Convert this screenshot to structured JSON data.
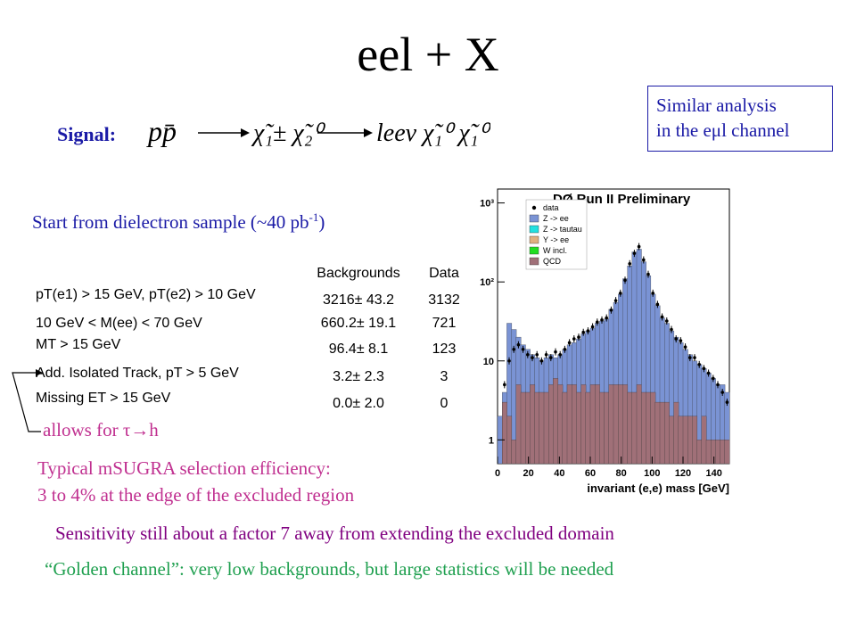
{
  "slide": {
    "title": "eel + X",
    "callout": {
      "line1": "Similar analysis",
      "line2": "in the eμl channel"
    },
    "signal_label": "Signal:",
    "formula": {
      "lhs": "pp̄",
      "mid": "χ̃₁± χ̃₂⁰",
      "rhs": "leeν χ̃₁⁰ χ̃₁⁰"
    },
    "start_text": "Start from dielectron sample (~40 pb",
    "start_sup": "-1",
    "start_close": ")",
    "table": {
      "headers": {
        "backgrounds": "Backgrounds",
        "data": "Data"
      },
      "rows": [
        {
          "cut": "pT(e1) > 15 GeV, pT(e2) > 10 GeV",
          "bkg": "3216± 43.2",
          "data": "3132"
        },
        {
          "cut": "10 GeV < M(ee) < 70 GeV",
          "bkg": "660.2± 19.1",
          "data": "721"
        },
        {
          "cut": "MT > 15 GeV",
          "bkg": "96.4± 8.1",
          "data": "123"
        },
        {
          "cut": "Add. Isolated Track, pT > 5 GeV",
          "bkg": "3.2± 2.3",
          "data": "3"
        },
        {
          "cut": "Missing ET > 15 GeV",
          "bkg": "0.0± 2.0",
          "data": "0"
        }
      ]
    },
    "allows": "allows for τ→h",
    "efficiency_line1": "Typical mSUGRA selection efficiency:",
    "efficiency_line2": "3 to 4% at the edge of the excluded region",
    "sensitivity": "Sensitivity still about a factor 7 away from extending the excluded domain",
    "golden": "“Golden channel”: very low backgrounds, but large statistics will be needed"
  },
  "colors": {
    "blue": "#1a1aa6",
    "magenta": "#c03090",
    "purple": "#800080",
    "green": "#20a050"
  },
  "chart_data": {
    "type": "bar",
    "title": "DØ Run II Preliminary",
    "xlabel": "invariant (e,e) mass [GeV]",
    "ylabel": "",
    "x_ticks": [
      "0",
      "20",
      "40",
      "60",
      "80",
      "100",
      "120",
      "140"
    ],
    "y_ticks": [
      "1",
      "10",
      "10²",
      "10³"
    ],
    "xlim": [
      0,
      150
    ],
    "y_log": true,
    "ylim": [
      0.5,
      1500
    ],
    "legend_position": "top-left",
    "legend": [
      "data",
      "Z -> ee",
      "Z -> tautau",
      "Y -> ee",
      "W incl.",
      "QCD"
    ],
    "series_colors": {
      "Z -> ee": "#7a93d4",
      "Z -> tautau": "#22e0e0",
      "Y -> ee": "#e0b080",
      "W incl.": "#22dd22",
      "QCD": "#a07078"
    },
    "bins_x": [
      0,
      3,
      6,
      9,
      12,
      15,
      18,
      21,
      24,
      27,
      30,
      33,
      36,
      39,
      42,
      45,
      48,
      51,
      54,
      57,
      60,
      63,
      66,
      69,
      72,
      75,
      78,
      81,
      84,
      87,
      90,
      93,
      96,
      99,
      102,
      105,
      108,
      111,
      114,
      117,
      120,
      123,
      126,
      129,
      132,
      135,
      138,
      141,
      144,
      147
    ],
    "total": [
      2,
      4,
      30,
      25,
      20,
      16,
      14,
      12,
      11,
      10,
      11,
      12,
      11,
      12,
      14,
      16,
      17,
      19,
      22,
      24,
      26,
      30,
      32,
      34,
      45,
      55,
      70,
      110,
      160,
      240,
      260,
      180,
      120,
      70,
      50,
      35,
      30,
      24,
      20,
      17,
      14,
      12,
      10,
      9,
      8,
      7,
      6,
      5,
      5,
      4
    ],
    "qcd": [
      0,
      3,
      2,
      1,
      5,
      4,
      4,
      5,
      4,
      4,
      4,
      5,
      6,
      5,
      4,
      5,
      5,
      4,
      5,
      4,
      5,
      5,
      4,
      4,
      5,
      5,
      5,
      5,
      4,
      4,
      5,
      4,
      4,
      4,
      3,
      3,
      3,
      2,
      3,
      2,
      2,
      2,
      2,
      1,
      2,
      1,
      1,
      1,
      1,
      1
    ],
    "data": [
      0,
      5,
      10,
      14,
      16,
      14,
      12,
      11,
      12,
      10,
      12,
      11,
      13,
      12,
      14,
      17,
      19,
      20,
      23,
      24,
      27,
      31,
      33,
      35,
      44,
      58,
      72,
      105,
      170,
      230,
      280,
      190,
      125,
      72,
      52,
      36,
      32,
      25,
      19,
      18,
      15,
      11,
      11,
      9,
      8,
      7,
      6,
      5,
      4,
      3
    ]
  }
}
